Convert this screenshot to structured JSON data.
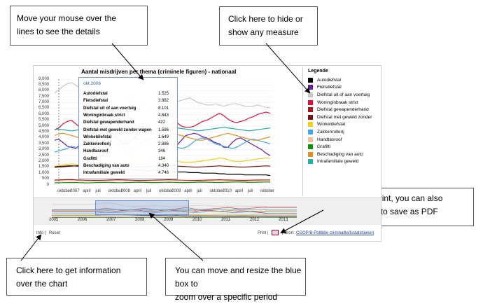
{
  "callouts": {
    "hover": [
      "Move your mouse over the",
      "lines to see the details"
    ],
    "legend": [
      "Click here to hide or",
      "show any measure"
    ],
    "print": [
      "Click here to print, you can also",
      "« print to file » to save as PDF"
    ],
    "info": [
      "Click here to get information",
      "over the chart"
    ],
    "zoom": [
      "You can move and resize the blue box to",
      "zoom over a specific period"
    ]
  },
  "chart": {
    "title": "Aantal misdrijven per thema (criminele figuren) - nationaal",
    "yticks": [
      "9,000",
      "8,500",
      "8,000",
      "7,500",
      "7,000",
      "6,500",
      "6,000",
      "5,500",
      "5,000",
      "4,500",
      "4,000",
      "3,500",
      "3,000",
      "2,500",
      "2,000",
      "1,500",
      "1,000",
      "500",
      "0"
    ],
    "xticks": [
      "oktober",
      "2007",
      "april",
      "juli",
      "oktober",
      "2008",
      "april",
      "juli",
      "oktober",
      "2009",
      "april",
      "juli",
      "oktober",
      "2010",
      "april",
      "juli",
      "oktober"
    ],
    "legend_title": "Legende",
    "legend": [
      {
        "label": "Autodiefstal",
        "color": "#000000"
      },
      {
        "label": "Fietsdiefstal",
        "color": "#6a1b9a"
      },
      {
        "label": "Diefstal uit of aan voertuig",
        "color": "#c8c8c8"
      },
      {
        "label": "Woninginbraak strict",
        "color": "#e0103a"
      },
      {
        "label": "Diefstal gewapenderhand",
        "color": "#a01818"
      },
      {
        "label": "Diefstal met geweld zonder",
        "color": "#7a1010"
      },
      {
        "label": "Winkeldiefstal",
        "color": "#f0d010"
      },
      {
        "label": "Zakkenrollerij",
        "color": "#40a8e8"
      },
      {
        "label": "Handtasroof",
        "color": "#f0c090"
      },
      {
        "label": "Grafitti",
        "color": "#109010"
      },
      {
        "label": "Beschadiging van auto",
        "color": "#e09020"
      },
      {
        "label": "Intrafamiliale geweld",
        "color": "#20b0a8"
      }
    ],
    "tooltip": {
      "date": "okt 2006",
      "rows": [
        {
          "label": "Autodiefstal",
          "value": "1.525"
        },
        {
          "label": "Fietsdiefstal",
          "value": "3.882"
        },
        {
          "label": "Diefstal uit of aan voertuig",
          "value": "8.101"
        },
        {
          "label": "Woninginbraak strict",
          "value": "4.843"
        },
        {
          "label": "Diefstal gewapenderhand",
          "value": "422"
        },
        {
          "label": "Diefstal met geweld zonder wapen",
          "value": "1.586"
        },
        {
          "label": "Winkeldiefstal",
          "value": "1.649"
        },
        {
          "label": "Zakkenrollerij",
          "value": "2.886"
        },
        {
          "label": "Handtasroof",
          "value": "346"
        },
        {
          "label": "Grafitti",
          "value": "184"
        },
        {
          "label": "Beschadiging van auto",
          "value": "4.340"
        },
        {
          "label": "Intrafamiliale geweld",
          "value": "4.746"
        }
      ]
    },
    "navigator_years": [
      "2005",
      "2006",
      "2007",
      "2008",
      "2009",
      "2010",
      "2011",
      "2012",
      "2013"
    ],
    "footer": {
      "info": "Info |",
      "reset": "Reset",
      "print": "Print |",
      "source_prefix": "| Bron:",
      "source_link": "CGOP/B-Politiële criminaliteitsstatistieken"
    }
  },
  "chart_data": {
    "type": "line",
    "title": "Aantal misdrijven per thema (criminele figuren) - nationaal",
    "ylim": [
      0,
      9000
    ],
    "x": [
      "2006-09",
      "2006-10",
      "2006-11",
      "2006-12",
      "2007-01",
      "2007-02",
      "2007-03",
      "2007-04",
      "2007-05",
      "2007-06",
      "2007-07",
      "2007-08",
      "2007-09",
      "2007-10",
      "2007-11",
      "2007-12",
      "2008-01",
      "2008-02",
      "2008-03",
      "2008-04",
      "2008-05",
      "2008-06",
      "2008-07",
      "2008-08",
      "2008-09",
      "2008-10",
      "2008-11",
      "2008-12",
      "2009-01",
      "2009-02",
      "2009-03",
      "2009-04",
      "2009-05",
      "2009-06",
      "2009-07",
      "2009-08",
      "2009-09",
      "2009-10",
      "2009-11",
      "2009-12",
      "2010-01",
      "2010-02",
      "2010-03",
      "2010-04",
      "2010-05",
      "2010-06",
      "2010-07",
      "2010-08",
      "2010-09",
      "2010-10",
      "2010-11",
      "2010-12"
    ],
    "series": [
      {
        "name": "Autodiefstal",
        "values": [
          1500,
          1525,
          1550,
          1580,
          1600,
          1620,
          1650,
          1700,
          1750,
          1700,
          1650,
          1600,
          1500,
          1450,
          1400,
          1400,
          1350,
          1350,
          1300,
          1300,
          1250,
          1250,
          1200,
          1200,
          1250,
          1200,
          1150,
          1150,
          1100,
          1100,
          1100,
          1100,
          1050,
          1050,
          1050,
          1000,
          1000,
          1000,
          1000,
          950,
          950,
          900,
          900,
          900,
          900,
          850,
          850,
          850,
          850,
          850,
          850,
          800
        ]
      },
      {
        "name": "Fietsdiefstal",
        "values": [
          3800,
          3882,
          3600,
          3300,
          3200,
          3100,
          3400,
          3900,
          4200,
          4400,
          4500,
          4600,
          4600,
          4500,
          4300,
          3900,
          3600,
          3500,
          3700,
          4100,
          4400,
          4500,
          4500,
          4400,
          4300,
          4200,
          3900,
          3500,
          3300,
          3400,
          3800,
          4200,
          4300,
          4400,
          4300,
          4100,
          4000,
          3800,
          3600,
          3500,
          3200,
          3200,
          3600,
          3900,
          4000,
          3800,
          3600,
          3400,
          3200,
          3000,
          2700,
          2500
        ]
      },
      {
        "name": "Diefstal uit of aan voertuig",
        "values": [
          7800,
          8101,
          8400,
          8600,
          8700,
          8500,
          8200,
          7800,
          7400,
          7000,
          6800,
          6600,
          6600,
          6700,
          6800,
          6900,
          7000,
          7200,
          7300,
          7100,
          6900,
          6700,
          6600,
          6500,
          6600,
          6700,
          6800,
          6900,
          7000,
          7100,
          7200,
          7300,
          7400,
          7200,
          7000,
          6900,
          6800,
          6800,
          6900,
          6800,
          6700,
          6800,
          6900,
          6900,
          6800,
          6700,
          6700,
          6700,
          6800,
          6700,
          6600,
          6600
        ]
      },
      {
        "name": "Woninginbraak strict",
        "values": [
          4700,
          4843,
          5200,
          5400,
          5500,
          5200,
          4900,
          4600,
          4500,
          4400,
          4600,
          4700,
          4900,
          5200,
          5400,
          5500,
          5300,
          5000,
          4800,
          4600,
          4500,
          4600,
          4800,
          5000,
          5200,
          5500,
          5800,
          5900,
          5700,
          5300,
          5000,
          4900,
          4900,
          5000,
          5200,
          5400,
          5500,
          5700,
          5900,
          6100,
          5900,
          5600,
          5400,
          5300,
          5400,
          5500,
          5700,
          5800,
          6000,
          6100,
          6200,
          6100
        ]
      },
      {
        "name": "Diefstal gewapenderhand",
        "values": [
          420,
          422,
          440,
          460,
          450,
          430,
          410,
          400,
          390,
          380,
          380,
          390,
          400,
          420,
          430,
          440,
          430,
          420,
          400,
          390,
          380,
          380,
          390,
          400,
          410,
          420,
          430,
          440,
          430,
          420,
          400,
          390,
          380,
          380,
          390,
          400,
          410,
          420,
          430,
          440,
          430,
          420,
          410,
          400,
          390,
          390,
          400,
          410,
          420,
          420,
          420,
          420
        ]
      },
      {
        "name": "Diefstal met geweld zonder wapen",
        "values": [
          1550,
          1586,
          1600,
          1620,
          1640,
          1600,
          1580,
          1560,
          1540,
          1520,
          1520,
          1540,
          1560,
          1580,
          1600,
          1620,
          1600,
          1580,
          1560,
          1540,
          1520,
          1520,
          1540,
          1560,
          1580,
          1600,
          1620,
          1640,
          1620,
          1600,
          1580,
          1560,
          1540,
          1520,
          1520,
          1540,
          1560,
          1580,
          1600,
          1620,
          1600,
          1580,
          1560,
          1540,
          1520,
          1520,
          1540,
          1560,
          1580,
          1600,
          1620,
          1600
        ]
      },
      {
        "name": "Winkeldiefstal",
        "values": [
          1600,
          1649,
          1700,
          1750,
          1800,
          1750,
          1700,
          1650,
          1650,
          1700,
          1750,
          1800,
          1850,
          1900,
          1950,
          2000,
          1950,
          1900,
          1850,
          1800,
          1800,
          1850,
          1900,
          1950,
          2000,
          2050,
          2100,
          2200,
          2150,
          2050,
          1950,
          1900,
          1900,
          1950,
          2000,
          2050,
          2100,
          2150,
          2200,
          2300,
          2250,
          2150,
          2050,
          2000,
          2000,
          2050,
          2100,
          2150,
          2200,
          2250,
          2300,
          2250
        ]
      },
      {
        "name": "Zakkenrollerij",
        "values": [
          2800,
          2886,
          3000,
          3100,
          3300,
          3200,
          3100,
          3000,
          3100,
          3300,
          3600,
          3800,
          3900,
          3800,
          3600,
          3400,
          3300,
          3200,
          3100,
          3200,
          3400,
          3700,
          3900,
          4000,
          3900,
          3700,
          3500,
          3400,
          3300,
          3200,
          3100,
          3200,
          3400,
          3700,
          3900,
          4000,
          3900,
          3700,
          3500,
          3400,
          3300,
          3200,
          3100,
          3200,
          3400,
          3600,
          3800,
          3900,
          3800,
          3700,
          3600,
          3500
        ]
      },
      {
        "name": "Handtasroof",
        "values": [
          340,
          346,
          360,
          370,
          380,
          360,
          350,
          340,
          330,
          320,
          320,
          330,
          340,
          350,
          360,
          370,
          360,
          350,
          340,
          330,
          320,
          320,
          330,
          340,
          350,
          360,
          370,
          380,
          370,
          360,
          350,
          340,
          330,
          320,
          320,
          330,
          340,
          350,
          360,
          370,
          360,
          350,
          340,
          330,
          320,
          320,
          330,
          340,
          350,
          360,
          370,
          360
        ]
      },
      {
        "name": "Grafitti",
        "values": [
          180,
          184,
          190,
          200,
          210,
          200,
          190,
          180,
          180,
          190,
          200,
          210,
          220,
          210,
          200,
          190,
          190,
          200,
          210,
          220,
          230,
          220,
          210,
          200,
          200,
          210,
          220,
          230,
          220,
          210,
          200,
          200,
          210,
          220,
          230,
          240,
          230,
          220,
          210,
          210,
          220,
          230,
          240,
          250,
          240,
          230,
          220,
          220,
          230,
          240,
          250,
          240
        ]
      },
      {
        "name": "Beschadiging van auto",
        "values": [
          4200,
          4340,
          4400,
          4300,
          4200,
          4100,
          4000,
          3900,
          3800,
          3700,
          3700,
          3800,
          3900,
          4000,
          4100,
          4200,
          4300,
          4200,
          4100,
          4000,
          3900,
          3800,
          3800,
          3900,
          4000,
          4100,
          4200,
          4300,
          4400,
          4300,
          4200,
          4100,
          4000,
          3900,
          3800,
          3800,
          3900,
          4000,
          4100,
          4200,
          4300,
          4400,
          4300,
          4200,
          4100,
          4000,
          3900,
          3800,
          3800,
          3900,
          4000,
          4100
        ]
      },
      {
        "name": "Intrafamiliale geweld",
        "values": [
          4700,
          4746,
          4700,
          4650,
          4600,
          4650,
          4700,
          4750,
          4800,
          4750,
          4700,
          4650,
          4600,
          4650,
          4700,
          4750,
          4800,
          4850,
          4800,
          4750,
          4700,
          4650,
          4600,
          4650,
          4700,
          4750,
          4800,
          4850,
          4900,
          4850,
          4800,
          4750,
          4700,
          4650,
          4600,
          4650,
          4700,
          4750,
          4800,
          4850,
          4900,
          4850,
          4800,
          4750,
          4700,
          4650,
          4600,
          4650,
          4700,
          4750,
          4800,
          4850
        ]
      }
    ]
  }
}
